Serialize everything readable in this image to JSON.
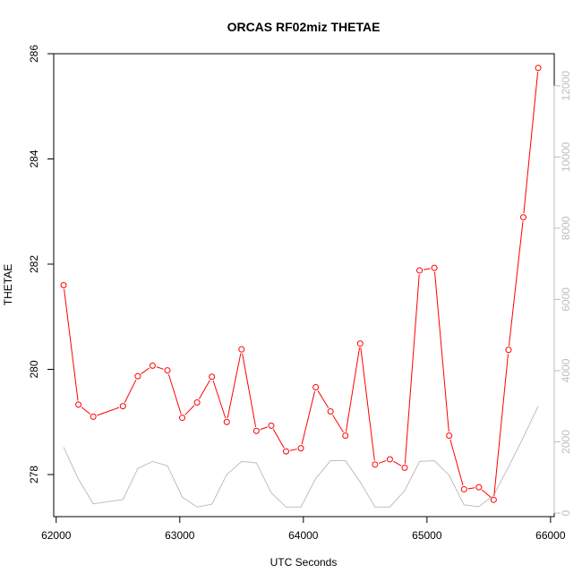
{
  "chart_data": {
    "type": "line",
    "title": "ORCAS RF02miz THETAE",
    "xlabel": "UTC Seconds",
    "ylabel": "THETAE",
    "xlim": [
      61980,
      66030
    ],
    "ylim": [
      277.2,
      286.0
    ],
    "y2lim": [
      -100,
      12900
    ],
    "x_ticks": [
      62000,
      63000,
      64000,
      65000,
      66000
    ],
    "y_ticks": [
      278,
      280,
      282,
      284,
      286
    ],
    "y2_ticks": [
      0,
      2000,
      4000,
      6000,
      8000,
      10000,
      12000
    ],
    "colors": {
      "primary": "#ff0000",
      "secondary": "#bebebe",
      "axes": "#000000"
    },
    "series": [
      {
        "axis": "left",
        "style": "line-with-circles",
        "color": "#ff0000",
        "x": [
          62060,
          62180,
          62300,
          62540,
          62660,
          62780,
          62900,
          63020,
          63140,
          63260,
          63380,
          63500,
          63620,
          63740,
          63860,
          63980,
          64100,
          64220,
          64340,
          64460,
          64580,
          64700,
          64820,
          64940,
          65060,
          65180,
          65300,
          65420,
          65540,
          65660,
          65780,
          65900
        ],
        "values": [
          281.6,
          279.33,
          279.1,
          279.3,
          279.87,
          280.07,
          279.98,
          279.08,
          279.37,
          279.86,
          279.0,
          280.38,
          278.83,
          278.93,
          278.44,
          278.5,
          279.66,
          279.2,
          278.74,
          280.49,
          278.19,
          278.29,
          278.13,
          281.88,
          281.93,
          278.74,
          277.72,
          277.76,
          277.52,
          280.37,
          282.89,
          285.73
        ]
      },
      {
        "axis": "right",
        "style": "line",
        "color": "#bebebe",
        "x": [
          62060,
          62180,
          62300,
          62540,
          62660,
          62780,
          62900,
          63020,
          63140,
          63260,
          63380,
          63500,
          63620,
          63740,
          63860,
          63980,
          64100,
          64220,
          64340,
          64460,
          64580,
          64700,
          64820,
          64940,
          65060,
          65180,
          65300,
          65420,
          65540,
          65660,
          65780,
          65900
        ],
        "values": [
          1850,
          950,
          260,
          380,
          1250,
          1450,
          1330,
          450,
          170,
          250,
          1080,
          1450,
          1410,
          570,
          170,
          170,
          970,
          1470,
          1470,
          870,
          170,
          170,
          630,
          1450,
          1470,
          1060,
          230,
          180,
          500,
          1300,
          2130,
          3000
        ]
      }
    ]
  }
}
